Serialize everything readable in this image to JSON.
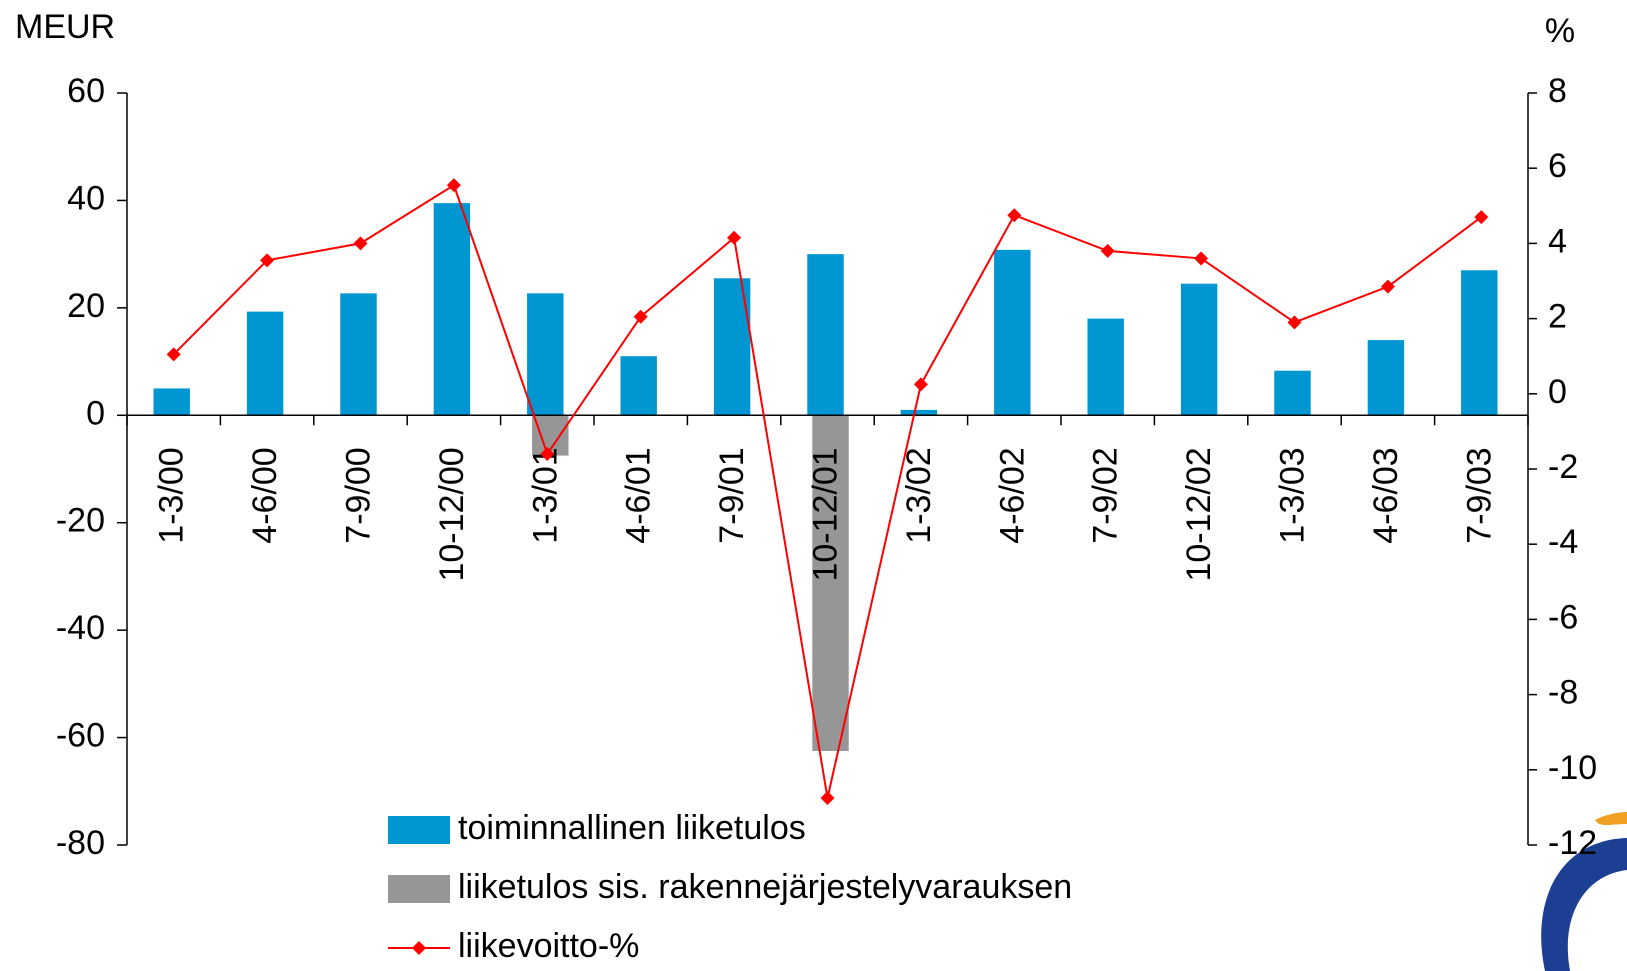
{
  "chart_data": {
    "type": "bar_line",
    "y_label": "MEUR",
    "y2_label": "%",
    "categories": [
      "1-3/00",
      "4-6/00",
      "7-9/00",
      "10-12/00",
      "1-3/01",
      "4-6/01",
      "7-9/01",
      "10-12/01",
      "1-3/02",
      "4-6/02",
      "7-9/02",
      "10-12/02",
      "1-3/03",
      "4-6/03",
      "7-9/03"
    ],
    "series": [
      {
        "name": "toiminnallinen liiketulos",
        "type": "bar",
        "color": "#0096d2",
        "values": [
          5,
          19.3,
          22.7,
          39.5,
          22.7,
          11,
          25.5,
          30,
          1,
          30.8,
          18,
          24.5,
          8.3,
          14,
          27
        ]
      },
      {
        "name": "liiketulos sis. rakennejärjestelyvarauksen",
        "type": "bar",
        "color": "#969696",
        "values": [
          null,
          null,
          null,
          null,
          -7.5,
          null,
          null,
          -62.5,
          null,
          null,
          null,
          null,
          null,
          null,
          null
        ]
      },
      {
        "name": "liikevoitto-%",
        "type": "line",
        "color": "#ff0000",
        "axis": "y2",
        "values": [
          1.05,
          3.55,
          4.0,
          5.55,
          -1.6,
          2.05,
          4.15,
          -10.75,
          0.25,
          4.75,
          3.8,
          3.6,
          1.9,
          2.85,
          4.7
        ]
      }
    ],
    "ylim": [
      -80,
      60
    ],
    "yticks": [
      -80,
      -60,
      -40,
      -20,
      0,
      20,
      40,
      60
    ],
    "y2lim": [
      -12,
      8
    ],
    "y2ticks": [
      -12,
      -10,
      -8,
      -6,
      -4,
      -2,
      0,
      2,
      4,
      6,
      8
    ]
  }
}
